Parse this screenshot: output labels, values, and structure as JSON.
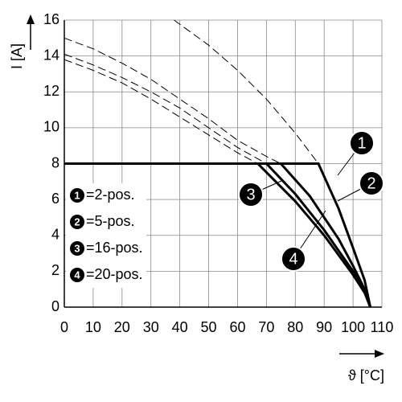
{
  "chart_data": {
    "type": "line",
    "x_label": "ϑ [°C]",
    "y_label": "I [A]",
    "xlim": [
      0,
      110
    ],
    "xticks": [
      0,
      10,
      20,
      30,
      40,
      50,
      60,
      70,
      80,
      90,
      100,
      110
    ],
    "ylim": [
      0,
      16
    ],
    "yticks": [
      0,
      2,
      4,
      6,
      8,
      10,
      12,
      14,
      16
    ],
    "grid": true,
    "series": [
      {
        "name": "=2-pos.",
        "marker": "1",
        "color": "#000000",
        "x": [
          38,
          50,
          60,
          70,
          80,
          88
        ],
        "values": [
          16,
          14.6,
          13.2,
          11.6,
          9.7,
          8
        ],
        "derated_x": [
          0,
          88,
          95,
          100,
          104,
          106
        ],
        "derated_values": [
          8,
          8,
          5.5,
          3.3,
          1.5,
          0
        ]
      },
      {
        "name": "=5-pos.",
        "marker": "2",
        "color": "#000000",
        "x": [
          0,
          10,
          20,
          30,
          40,
          50,
          60,
          70,
          75
        ],
        "values": [
          15,
          14.4,
          13.6,
          12.7,
          11.6,
          10.5,
          9.3,
          8.4,
          8
        ],
        "derated_x": [
          0,
          75,
          85,
          95,
          100,
          104,
          106
        ],
        "derated_values": [
          8,
          8,
          6.2,
          3.8,
          2.3,
          1,
          0
        ]
      },
      {
        "name": "=16-pos.",
        "marker": "3",
        "color": "#000000",
        "x": [
          0,
          10,
          20,
          30,
          40,
          50,
          60,
          70
        ],
        "values": [
          14.1,
          13.5,
          12.8,
          12,
          11.1,
          10,
          8.9,
          8
        ],
        "derated_x": [
          0,
          70,
          80,
          90,
          100,
          104,
          106
        ],
        "derated_values": [
          8,
          8,
          6.3,
          4.3,
          2,
          0.9,
          0
        ]
      },
      {
        "name": "=20-pos.",
        "marker": "4",
        "color": "#000000",
        "x": [
          0,
          10,
          20,
          30,
          40,
          50,
          60,
          67
        ],
        "values": [
          13.8,
          13.2,
          12.5,
          11.6,
          10.6,
          9.6,
          8.6,
          8
        ],
        "derated_x": [
          0,
          67,
          80,
          90,
          100,
          104,
          106
        ],
        "derated_values": [
          8,
          8,
          5.9,
          4,
          1.8,
          0.8,
          0
        ]
      }
    ]
  }
}
